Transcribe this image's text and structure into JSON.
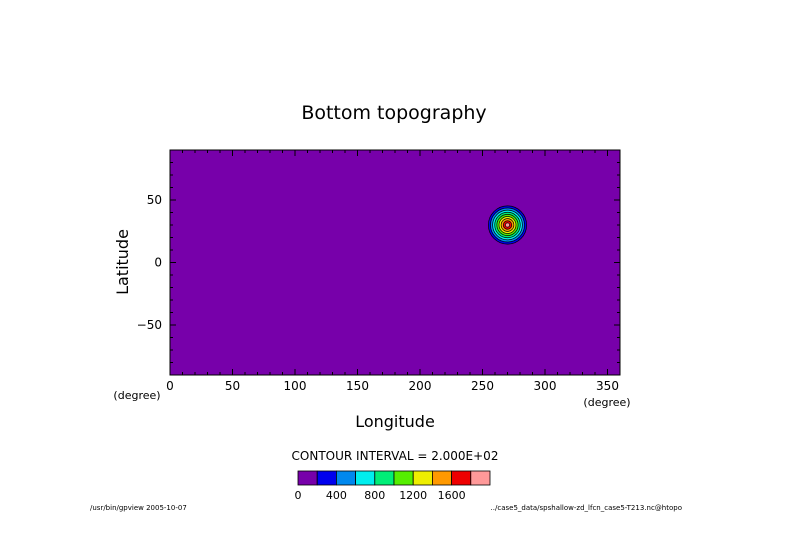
{
  "chart_data": {
    "type": "heatmap",
    "title": "Bottom topography",
    "xlabel": "Longitude",
    "ylabel": "Latitude",
    "x_unit": "(degree)",
    "y_unit": "(degree)",
    "xlim": [
      0,
      360
    ],
    "ylim": [
      -90,
      90
    ],
    "x_ticks": [
      0,
      50,
      100,
      150,
      200,
      250,
      300,
      350
    ],
    "y_ticks": [
      50,
      0,
      -50
    ],
    "contour_interval_text": "CONTOUR INTERVAL = 2.000E+02",
    "field": {
      "name": "topography",
      "background_value": 0,
      "mountain": {
        "center_lon": 270,
        "center_lat": 30,
        "peak": 2000,
        "radius_deg": 17
      }
    },
    "colorbar": {
      "levels": [
        0,
        200,
        400,
        600,
        800,
        1000,
        1200,
        1400,
        1600,
        1800,
        2000
      ],
      "colors": [
        "#7700aa",
        "#0000ee",
        "#0088ee",
        "#00eeee",
        "#00ee77",
        "#55ee00",
        "#eeee00",
        "#ff9900",
        "#ee0000",
        "#ff9999"
      ],
      "labels": [
        "0",
        "400",
        "800",
        "1200",
        "1600"
      ]
    }
  },
  "footer": {
    "left": "/usr/bin/gpview  2005-10-07",
    "right": "../case5_data/spshallow-zd_lfcn_case5-T213.nc@htopo"
  },
  "colors": {
    "background": "#ffffff",
    "axis": "#000000",
    "base_fill": "#7700aa"
  }
}
